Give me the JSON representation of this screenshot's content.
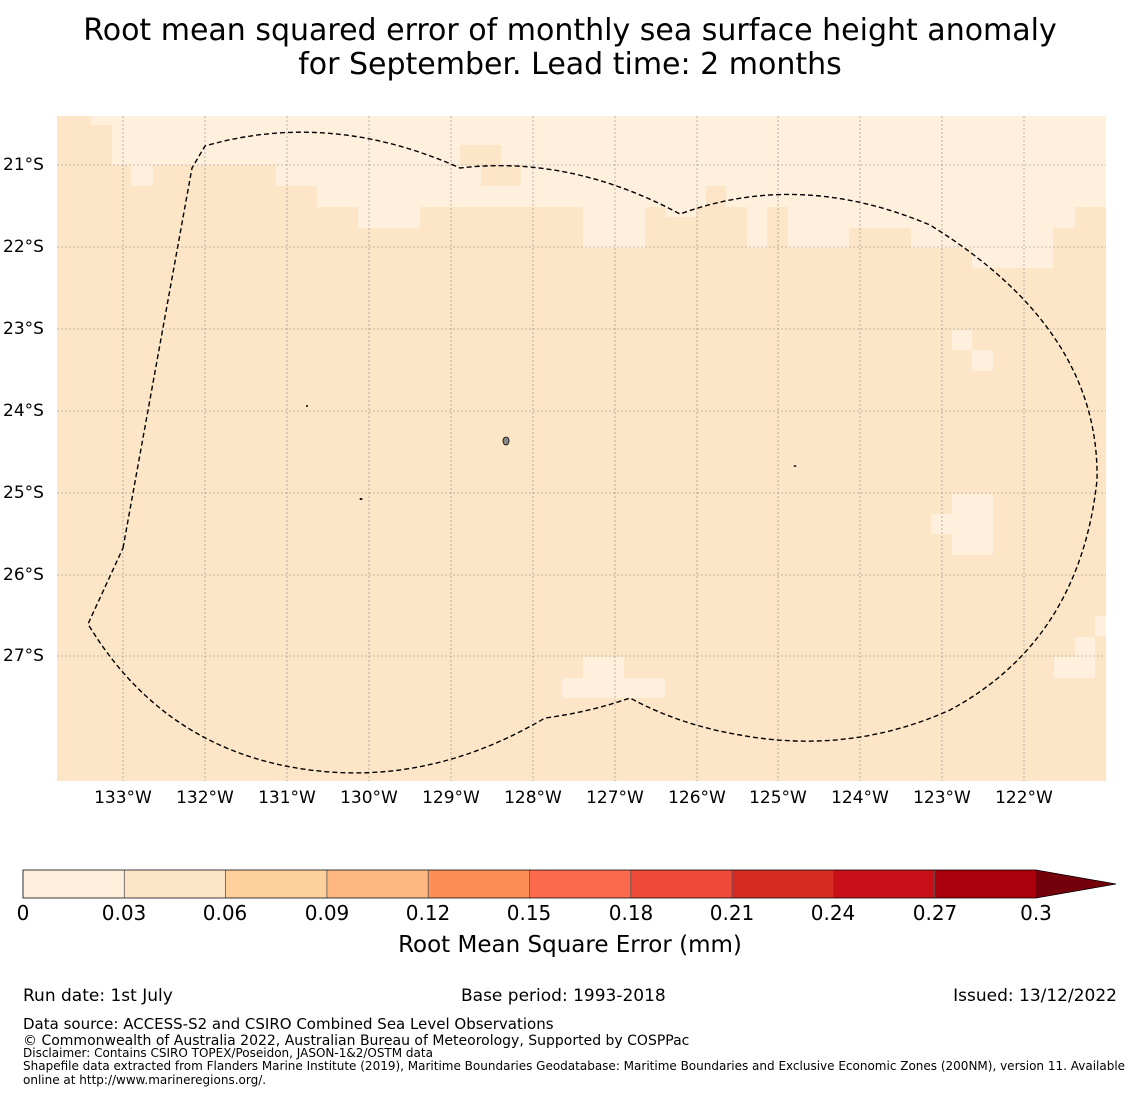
{
  "title": {
    "line1": "Root mean squared error of monthly sea surface height anomaly",
    "line2": "for September. Lead time: 2 months"
  },
  "map": {
    "lat_labels": [
      "21°S",
      "22°S",
      "23°S",
      "24°S",
      "25°S",
      "26°S",
      "27°S"
    ],
    "lon_labels": [
      "133°W",
      "132°W",
      "131°W",
      "130°W",
      "129°W",
      "128°W",
      "127°W",
      "126°W",
      "125°W",
      "124°W",
      "123°W",
      "122°W"
    ],
    "colors": {
      "level_0_003": "#fff0dd",
      "level_003_006": "#fde6c7",
      "boundary": "#000000",
      "grid": "#888888"
    }
  },
  "colorbar": {
    "title": "Root Mean Square Error (mm)",
    "ticks": [
      "0",
      "0.03",
      "0.06",
      "0.09",
      "0.12",
      "0.15",
      "0.18",
      "0.21",
      "0.24",
      "0.27",
      "0.3"
    ],
    "colors": [
      "#fff0dd",
      "#fde6c7",
      "#fdd09c",
      "#fdb87f",
      "#fc8e56",
      "#fb6a4a",
      "#ef4a39",
      "#d62b23",
      "#c90f17",
      "#a9000b",
      "#74000c"
    ]
  },
  "footer": {
    "run_date": "Run date: 1st July",
    "base_period": "Base period: 1993-2018",
    "issued": "Issued: 13/12/2022",
    "data_source": "Data source: ACCESS-S2 and CSIRO Combined Sea Level Observations",
    "copyright": "© Commonwealth of Australia 2022, Australian Bureau of Meteorology, Supported by COSPPac",
    "disclaimer": "Disclaimer: Contains CSIRO TOPEX/Poseidon, JASON-1&2/OSTM data",
    "shapefile": "Shapefile data extracted from Flanders Marine Institute (2019), Maritime Boundaries Geodatabase: Maritime Boundaries and Exclusive Economic Zones (200NM), version 11. Available online at http://www.marineregions.org/."
  }
}
